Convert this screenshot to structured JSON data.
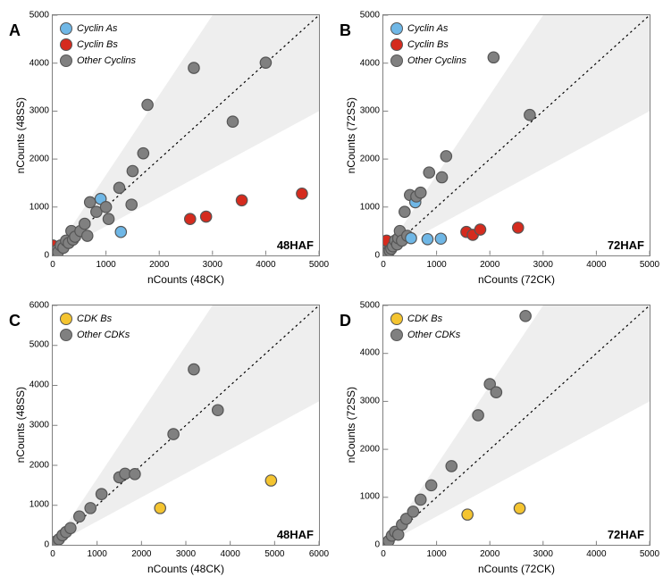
{
  "colors": {
    "cyclin_a": "#6fb7e6",
    "cyclin_b": "#d52b1e",
    "other": "#808080",
    "cdk_b": "#f4c430",
    "shade": "#eeeeee",
    "border": "#808080",
    "bg": "#ffffff"
  },
  "marker_radius": 6.2,
  "panels": [
    {
      "letter": "A",
      "corner": "48HAF",
      "xlabel": "nCounts (48CK)",
      "ylabel": "nCounts (48SS)",
      "xlim": [
        0,
        5000
      ],
      "ylim": [
        0,
        5000
      ],
      "xticks": [
        0,
        1000,
        2000,
        3000,
        4000,
        5000
      ],
      "yticks": [
        0,
        1000,
        2000,
        3000,
        4000,
        5000
      ],
      "legend": [
        {
          "label": "Cyclin As",
          "color": "cyclin_a"
        },
        {
          "label": "Cyclin Bs",
          "color": "cyclin_b"
        },
        {
          "label": "Other Cyclins",
          "color": "other"
        }
      ],
      "shade_left_topfrac": 0.6,
      "shade_bottom_rightfrac": 0.6,
      "points": [
        {
          "x": 0,
          "y": 200,
          "c": "cyclin_b"
        },
        {
          "x": 50,
          "y": 50,
          "c": "other"
        },
        {
          "x": 80,
          "y": 100,
          "c": "other"
        },
        {
          "x": 100,
          "y": 60,
          "c": "other"
        },
        {
          "x": 150,
          "y": 200,
          "c": "other"
        },
        {
          "x": 200,
          "y": 150,
          "c": "other"
        },
        {
          "x": 250,
          "y": 300,
          "c": "other"
        },
        {
          "x": 300,
          "y": 250,
          "c": "other"
        },
        {
          "x": 350,
          "y": 500,
          "c": "other"
        },
        {
          "x": 380,
          "y": 320,
          "c": "other"
        },
        {
          "x": 420,
          "y": 380,
          "c": "other"
        },
        {
          "x": 520,
          "y": 500,
          "c": "other"
        },
        {
          "x": 600,
          "y": 650,
          "c": "other"
        },
        {
          "x": 650,
          "y": 400,
          "c": "other"
        },
        {
          "x": 700,
          "y": 1100,
          "c": "other"
        },
        {
          "x": 820,
          "y": 900,
          "c": "other"
        },
        {
          "x": 900,
          "y": 1170,
          "c": "cyclin_a"
        },
        {
          "x": 1000,
          "y": 1000,
          "c": "other"
        },
        {
          "x": 1050,
          "y": 750,
          "c": "other"
        },
        {
          "x": 1280,
          "y": 480,
          "c": "cyclin_a"
        },
        {
          "x": 1250,
          "y": 1400,
          "c": "other"
        },
        {
          "x": 1480,
          "y": 1050,
          "c": "other"
        },
        {
          "x": 1500,
          "y": 1750,
          "c": "other"
        },
        {
          "x": 1700,
          "y": 2120,
          "c": "other"
        },
        {
          "x": 1780,
          "y": 3130,
          "c": "other"
        },
        {
          "x": 2580,
          "y": 750,
          "c": "cyclin_b"
        },
        {
          "x": 2650,
          "y": 3900,
          "c": "other"
        },
        {
          "x": 2880,
          "y": 800,
          "c": "cyclin_b"
        },
        {
          "x": 3380,
          "y": 2780,
          "c": "other"
        },
        {
          "x": 3550,
          "y": 1140,
          "c": "cyclin_b"
        },
        {
          "x": 4000,
          "y": 4010,
          "c": "other"
        },
        {
          "x": 4680,
          "y": 1280,
          "c": "cyclin_b"
        }
      ]
    },
    {
      "letter": "B",
      "corner": "72HAF",
      "xlabel": "nCounts (72CK)",
      "ylabel": "nCounts (72SS)",
      "xlim": [
        0,
        5000
      ],
      "ylim": [
        0,
        5000
      ],
      "xticks": [
        0,
        1000,
        2000,
        3000,
        4000,
        5000
      ],
      "yticks": [
        0,
        1000,
        2000,
        3000,
        4000,
        5000
      ],
      "legend": [
        {
          "label": "Cyclin As",
          "color": "cyclin_a"
        },
        {
          "label": "Cyclin Bs",
          "color": "cyclin_b"
        },
        {
          "label": "Other Cyclins",
          "color": "other"
        }
      ],
      "shade_left_topfrac": 0.6,
      "shade_bottom_rightfrac": 0.6,
      "points": [
        {
          "x": 0,
          "y": 100,
          "c": "other"
        },
        {
          "x": 40,
          "y": 30,
          "c": "other"
        },
        {
          "x": 60,
          "y": 300,
          "c": "cyclin_b"
        },
        {
          "x": 80,
          "y": 60,
          "c": "other"
        },
        {
          "x": 120,
          "y": 90,
          "c": "other"
        },
        {
          "x": 150,
          "y": 130,
          "c": "other"
        },
        {
          "x": 180,
          "y": 180,
          "c": "other"
        },
        {
          "x": 220,
          "y": 300,
          "c": "other"
        },
        {
          "x": 260,
          "y": 220,
          "c": "other"
        },
        {
          "x": 280,
          "y": 350,
          "c": "other"
        },
        {
          "x": 310,
          "y": 500,
          "c": "other"
        },
        {
          "x": 350,
          "y": 300,
          "c": "other"
        },
        {
          "x": 400,
          "y": 900,
          "c": "other"
        },
        {
          "x": 450,
          "y": 400,
          "c": "other"
        },
        {
          "x": 500,
          "y": 1250,
          "c": "other"
        },
        {
          "x": 520,
          "y": 350,
          "c": "cyclin_a"
        },
        {
          "x": 600,
          "y": 1100,
          "c": "cyclin_a"
        },
        {
          "x": 620,
          "y": 1220,
          "c": "other"
        },
        {
          "x": 700,
          "y": 1300,
          "c": "other"
        },
        {
          "x": 830,
          "y": 330,
          "c": "cyclin_a"
        },
        {
          "x": 860,
          "y": 1720,
          "c": "other"
        },
        {
          "x": 1080,
          "y": 340,
          "c": "cyclin_a"
        },
        {
          "x": 1100,
          "y": 1620,
          "c": "other"
        },
        {
          "x": 1180,
          "y": 2060,
          "c": "other"
        },
        {
          "x": 1560,
          "y": 480,
          "c": "cyclin_b"
        },
        {
          "x": 1680,
          "y": 420,
          "c": "cyclin_b"
        },
        {
          "x": 1820,
          "y": 530,
          "c": "cyclin_b"
        },
        {
          "x": 2070,
          "y": 4120,
          "c": "other"
        },
        {
          "x": 2530,
          "y": 570,
          "c": "cyclin_b"
        },
        {
          "x": 2750,
          "y": 2920,
          "c": "other"
        }
      ]
    },
    {
      "letter": "C",
      "corner": "48HAF",
      "xlabel": "nCounts (48CK)",
      "ylabel": "nCounts (48SS)",
      "xlim": [
        0,
        6000
      ],
      "ylim": [
        0,
        6000
      ],
      "xticks": [
        0,
        1000,
        2000,
        3000,
        4000,
        5000,
        6000
      ],
      "yticks": [
        0,
        1000,
        2000,
        3000,
        4000,
        5000,
        6000
      ],
      "legend": [
        {
          "label": "CDK Bs",
          "color": "cdk_b"
        },
        {
          "label": "Other CDKs",
          "color": "other"
        }
      ],
      "shade_left_topfrac": 0.6,
      "shade_bottom_rightfrac": 0.6,
      "points": [
        {
          "x": 40,
          "y": 30,
          "c": "other"
        },
        {
          "x": 80,
          "y": 100,
          "c": "other"
        },
        {
          "x": 140,
          "y": 150,
          "c": "other"
        },
        {
          "x": 220,
          "y": 250,
          "c": "other"
        },
        {
          "x": 300,
          "y": 330,
          "c": "other"
        },
        {
          "x": 400,
          "y": 430,
          "c": "other"
        },
        {
          "x": 600,
          "y": 720,
          "c": "other"
        },
        {
          "x": 850,
          "y": 930,
          "c": "other"
        },
        {
          "x": 1100,
          "y": 1280,
          "c": "other"
        },
        {
          "x": 1500,
          "y": 1700,
          "c": "other"
        },
        {
          "x": 1630,
          "y": 1790,
          "c": "other"
        },
        {
          "x": 1850,
          "y": 1780,
          "c": "other"
        },
        {
          "x": 2420,
          "y": 930,
          "c": "cdk_b"
        },
        {
          "x": 2720,
          "y": 2780,
          "c": "other"
        },
        {
          "x": 3180,
          "y": 4400,
          "c": "other"
        },
        {
          "x": 3720,
          "y": 3380,
          "c": "other"
        },
        {
          "x": 4920,
          "y": 1620,
          "c": "cdk_b"
        }
      ]
    },
    {
      "letter": "D",
      "corner": "72HAF",
      "xlabel": "nCounts (72CK)",
      "ylabel": "nCounts (72SS)",
      "xlim": [
        0,
        5000
      ],
      "ylim": [
        0,
        5000
      ],
      "xticks": [
        0,
        1000,
        2000,
        3000,
        4000,
        5000
      ],
      "yticks": [
        0,
        1000,
        2000,
        3000,
        4000,
        5000
      ],
      "legend": [
        {
          "label": "CDK Bs",
          "color": "cdk_b"
        },
        {
          "label": "Other CDKs",
          "color": "other"
        }
      ],
      "shade_left_topfrac": 0.6,
      "shade_bottom_rightfrac": 0.6,
      "points": [
        {
          "x": 30,
          "y": 40,
          "c": "other"
        },
        {
          "x": 100,
          "y": 90,
          "c": "other"
        },
        {
          "x": 160,
          "y": 200,
          "c": "other"
        },
        {
          "x": 220,
          "y": 280,
          "c": "other"
        },
        {
          "x": 280,
          "y": 220,
          "c": "other"
        },
        {
          "x": 350,
          "y": 430,
          "c": "other"
        },
        {
          "x": 430,
          "y": 550,
          "c": "other"
        },
        {
          "x": 560,
          "y": 700,
          "c": "other"
        },
        {
          "x": 700,
          "y": 950,
          "c": "other"
        },
        {
          "x": 900,
          "y": 1250,
          "c": "other"
        },
        {
          "x": 1280,
          "y": 1650,
          "c": "other"
        },
        {
          "x": 1580,
          "y": 640,
          "c": "cdk_b"
        },
        {
          "x": 1780,
          "y": 2710,
          "c": "other"
        },
        {
          "x": 2000,
          "y": 3360,
          "c": "other"
        },
        {
          "x": 2120,
          "y": 3190,
          "c": "other"
        },
        {
          "x": 2560,
          "y": 770,
          "c": "cdk_b"
        },
        {
          "x": 2670,
          "y": 4780,
          "c": "other"
        }
      ]
    }
  ]
}
